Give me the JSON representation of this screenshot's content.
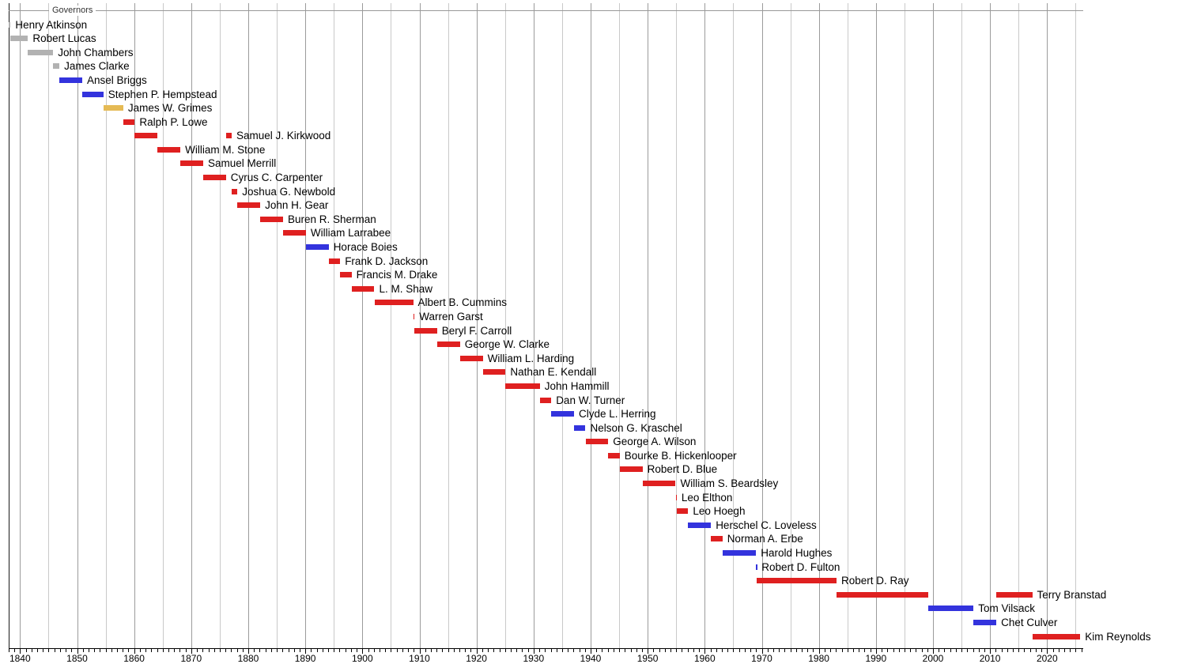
{
  "chart_data": {
    "type": "timeline",
    "title": "Governors",
    "x_axis": {
      "min_year": 1838,
      "max_year": 2026.5,
      "decade_labels": [
        "1840",
        "1850",
        "1860",
        "1870",
        "1880",
        "1890",
        "1900",
        "1910",
        "1920",
        "1930",
        "1940",
        "1950",
        "1960",
        "1970",
        "1980",
        "1990",
        "2000",
        "2010",
        "2020"
      ],
      "gridline_interval_years": 5,
      "tick_interval_years": 1
    },
    "colors": {
      "red": "#df2020",
      "blue": "#3333dd",
      "yellow": "#e5ba55",
      "gray": "#b2b2b2",
      "grid_major": "#9b9b9b",
      "grid_minor": "#c9c9c9",
      "axis": "#000000",
      "period_line": "#999999"
    },
    "rows": [
      {
        "name": "Henry Atkinson",
        "color": "gray",
        "terms": [
          [
            1838.0,
            1838.35
          ]
        ]
      },
      {
        "name": "Robert Lucas",
        "color": "gray",
        "terms": [
          [
            1838.35,
            1841.4
          ]
        ]
      },
      {
        "name": "John Chambers",
        "color": "gray",
        "terms": [
          [
            1841.4,
            1845.8
          ]
        ]
      },
      {
        "name": "James Clarke",
        "color": "gray",
        "terms": [
          [
            1845.8,
            1846.9
          ]
        ]
      },
      {
        "name": "Ansel Briggs",
        "color": "blue",
        "terms": [
          [
            1846.9,
            1850.9
          ]
        ]
      },
      {
        "name": "Stephen P. Hempstead",
        "color": "blue",
        "terms": [
          [
            1850.9,
            1854.6
          ]
        ]
      },
      {
        "name": "James W. Grimes",
        "color": "yellow",
        "terms": [
          [
            1854.6,
            1858.1
          ]
        ]
      },
      {
        "name": "Ralph P. Lowe",
        "color": "red",
        "terms": [
          [
            1858.1,
            1860.1
          ]
        ]
      },
      {
        "name": "Samuel J. Kirkwood",
        "color": "red",
        "terms": [
          [
            1860.1,
            1864.1
          ],
          [
            1876.1,
            1877.1
          ]
        ]
      },
      {
        "name": "William M. Stone",
        "color": "red",
        "terms": [
          [
            1864.1,
            1868.1
          ]
        ]
      },
      {
        "name": "Samuel Merrill",
        "color": "red",
        "terms": [
          [
            1868.1,
            1872.1
          ]
        ]
      },
      {
        "name": "Cyrus C. Carpenter",
        "color": "red",
        "terms": [
          [
            1872.1,
            1876.1
          ]
        ]
      },
      {
        "name": "Joshua G. Newbold",
        "color": "red",
        "terms": [
          [
            1877.1,
            1878.1
          ]
        ]
      },
      {
        "name": "John H. Gear",
        "color": "red",
        "terms": [
          [
            1878.1,
            1882.1
          ]
        ]
      },
      {
        "name": "Buren R. Sherman",
        "color": "red",
        "terms": [
          [
            1882.1,
            1886.1
          ]
        ]
      },
      {
        "name": "William Larrabee",
        "color": "red",
        "terms": [
          [
            1886.1,
            1890.1
          ]
        ]
      },
      {
        "name": "Horace Boies",
        "color": "blue",
        "terms": [
          [
            1890.1,
            1894.1
          ]
        ]
      },
      {
        "name": "Frank D. Jackson",
        "color": "red",
        "terms": [
          [
            1894.1,
            1896.1
          ]
        ]
      },
      {
        "name": "Francis M. Drake",
        "color": "red",
        "terms": [
          [
            1896.1,
            1898.1
          ]
        ]
      },
      {
        "name": "L. M. Shaw",
        "color": "red",
        "terms": [
          [
            1898.1,
            1902.1
          ]
        ]
      },
      {
        "name": "Albert B. Cummins",
        "color": "red",
        "terms": [
          [
            1902.1,
            1908.9
          ]
        ]
      },
      {
        "name": "Warren Garst",
        "color": "red",
        "terms": [
          [
            1908.9,
            1909.15
          ]
        ]
      },
      {
        "name": "Beryl F. Carroll",
        "color": "red",
        "terms": [
          [
            1909.15,
            1913.1
          ]
        ]
      },
      {
        "name": "George W. Clarke",
        "color": "red",
        "terms": [
          [
            1913.1,
            1917.1
          ]
        ]
      },
      {
        "name": "William L. Harding",
        "color": "red",
        "terms": [
          [
            1917.1,
            1921.1
          ]
        ]
      },
      {
        "name": "Nathan E. Kendall",
        "color": "red",
        "terms": [
          [
            1921.1,
            1925.1
          ]
        ]
      },
      {
        "name": "John Hammill",
        "color": "red",
        "terms": [
          [
            1925.1,
            1931.1
          ]
        ]
      },
      {
        "name": "Dan W. Turner",
        "color": "red",
        "terms": [
          [
            1931.1,
            1933.1
          ]
        ]
      },
      {
        "name": "Clyde L. Herring",
        "color": "blue",
        "terms": [
          [
            1933.1,
            1937.1
          ]
        ]
      },
      {
        "name": "Nelson G. Kraschel",
        "color": "blue",
        "terms": [
          [
            1937.1,
            1939.1
          ]
        ]
      },
      {
        "name": "George A. Wilson",
        "color": "red",
        "terms": [
          [
            1939.1,
            1943.1
          ]
        ]
      },
      {
        "name": "Bourke B. Hickenlooper",
        "color": "red",
        "terms": [
          [
            1943.1,
            1945.1
          ]
        ]
      },
      {
        "name": "Robert D. Blue",
        "color": "red",
        "terms": [
          [
            1945.1,
            1949.1
          ]
        ]
      },
      {
        "name": "William S. Beardsley",
        "color": "red",
        "terms": [
          [
            1949.1,
            1954.9
          ]
        ]
      },
      {
        "name": "Leo Elthon",
        "color": "red",
        "terms": [
          [
            1954.9,
            1955.1
          ]
        ]
      },
      {
        "name": "Leo Hoegh",
        "color": "red",
        "terms": [
          [
            1955.1,
            1957.1
          ]
        ]
      },
      {
        "name": "Herschel C. Loveless",
        "color": "blue",
        "terms": [
          [
            1957.1,
            1961.1
          ]
        ]
      },
      {
        "name": "Norman A. Erbe",
        "color": "red",
        "terms": [
          [
            1961.1,
            1963.1
          ]
        ]
      },
      {
        "name": "Harold Hughes",
        "color": "blue",
        "terms": [
          [
            1963.1,
            1969.0
          ]
        ]
      },
      {
        "name": "Robert D. Fulton",
        "color": "blue",
        "terms": [
          [
            1969.0,
            1969.15
          ]
        ]
      },
      {
        "name": "Robert D. Ray",
        "color": "red",
        "terms": [
          [
            1969.15,
            1983.1
          ]
        ]
      },
      {
        "name": "Terry Branstad",
        "color": "red",
        "terms": [
          [
            1983.1,
            1999.1
          ],
          [
            2011.1,
            2017.4
          ]
        ]
      },
      {
        "name": "Tom Vilsack",
        "color": "blue",
        "terms": [
          [
            1999.1,
            2007.1
          ]
        ]
      },
      {
        "name": "Chet Culver",
        "color": "blue",
        "terms": [
          [
            2007.1,
            2011.1
          ]
        ]
      },
      {
        "name": "Kim Reynolds",
        "color": "red",
        "terms": [
          [
            2017.4,
            2025.8
          ]
        ]
      }
    ]
  }
}
